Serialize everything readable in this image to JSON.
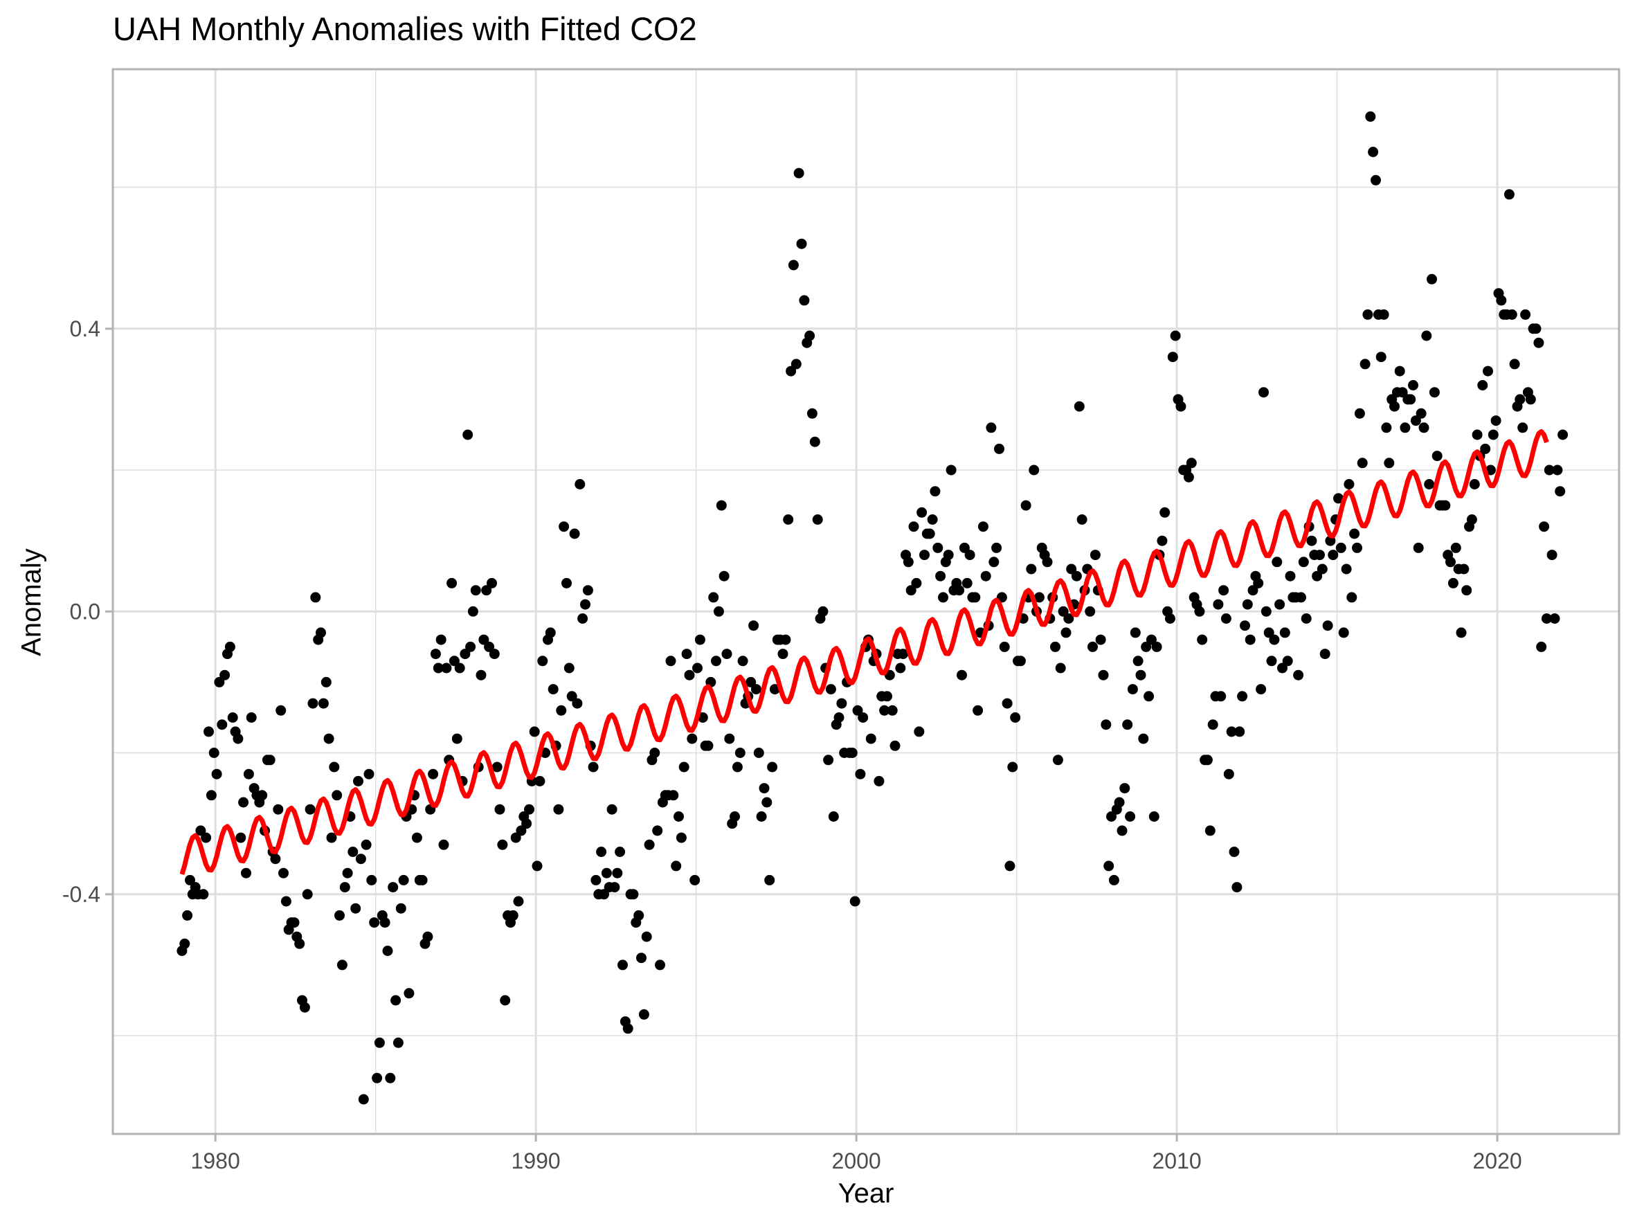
{
  "chart_data": {
    "type": "scatter",
    "title": "UAH Monthly Anomalies with Fitted CO2",
    "xlabel": "Year",
    "ylabel": "Anomaly",
    "xlim": [
      1976.8,
      2023.8
    ],
    "ylim": [
      -0.739,
      0.767
    ],
    "x_ticks": [
      1980,
      1990,
      2000,
      2010,
      2020
    ],
    "x_tick_labels": [
      "1980",
      "1990",
      "2000",
      "2010",
      "2020"
    ],
    "y_ticks": [
      -0.4,
      0.0,
      0.4
    ],
    "y_tick_labels": [
      "-0.4",
      "0.0",
      "0.4"
    ],
    "y_minor_ticks": [
      -0.6,
      -0.2,
      0.2,
      0.6
    ],
    "x_minor_ticks": [
      1985,
      1995,
      2005,
      2015
    ],
    "grid": true,
    "colors": {
      "points": "#000000",
      "fit_line": "#ff0000",
      "grid": "#dedede",
      "border": "#b3b3b3",
      "tick_text": "#4d4d4d"
    },
    "series": [
      {
        "name": "UAH monthly anomaly",
        "type": "scatter",
        "x_start": 1978.958,
        "x_step": 0.0833333,
        "values": [
          -0.48,
          -0.47,
          -0.43,
          -0.38,
          -0.4,
          -0.39,
          -0.4,
          -0.31,
          -0.4,
          -0.32,
          -0.17,
          -0.26,
          -0.2,
          -0.23,
          -0.1,
          -0.16,
          -0.09,
          -0.06,
          -0.05,
          -0.15,
          -0.17,
          -0.18,
          -0.32,
          -0.27,
          -0.37,
          -0.23,
          -0.15,
          -0.25,
          -0.26,
          -0.27,
          -0.26,
          -0.31,
          -0.21,
          -0.21,
          -0.34,
          -0.35,
          -0.28,
          -0.14,
          -0.37,
          -0.41,
          -0.45,
          -0.44,
          -0.44,
          -0.46,
          -0.47,
          -0.55,
          -0.56,
          -0.4,
          -0.28,
          -0.13,
          0.02,
          -0.04,
          -0.03,
          -0.13,
          -0.1,
          -0.18,
          -0.32,
          -0.22,
          -0.26,
          -0.43,
          -0.5,
          -0.39,
          -0.37,
          -0.29,
          -0.34,
          -0.42,
          -0.24,
          -0.35,
          -0.69,
          -0.33,
          -0.23,
          -0.38,
          -0.44,
          -0.66,
          -0.61,
          -0.43,
          -0.44,
          -0.48,
          -0.66,
          -0.39,
          -0.55,
          -0.61,
          -0.42,
          -0.38,
          -0.29,
          -0.54,
          -0.28,
          -0.26,
          -0.32,
          -0.38,
          -0.38,
          -0.47,
          -0.46,
          -0.28,
          -0.23,
          -0.06,
          -0.08,
          -0.04,
          -0.33,
          -0.08,
          -0.21,
          0.04,
          -0.07,
          -0.18,
          -0.08,
          -0.24,
          -0.06,
          0.25,
          -0.05,
          0.0,
          0.03,
          -0.22,
          -0.09,
          -0.04,
          0.03,
          -0.05,
          0.04,
          -0.06,
          -0.22,
          -0.28,
          -0.33,
          -0.55,
          -0.43,
          -0.44,
          -0.43,
          -0.32,
          -0.41,
          -0.31,
          -0.29,
          -0.3,
          -0.28,
          -0.24,
          -0.17,
          -0.36,
          -0.24,
          -0.07,
          -0.2,
          -0.04,
          -0.03,
          -0.11,
          -0.19,
          -0.28,
          -0.14,
          0.12,
          0.04,
          -0.08,
          -0.12,
          0.11,
          -0.13,
          0.18,
          -0.01,
          0.01,
          0.03,
          -0.19,
          -0.22,
          -0.38,
          -0.4,
          -0.34,
          -0.4,
          -0.37,
          -0.39,
          -0.28,
          -0.39,
          -0.37,
          -0.34,
          -0.5,
          -0.58,
          -0.59,
          -0.4,
          -0.4,
          -0.44,
          -0.43,
          -0.49,
          -0.57,
          -0.46,
          -0.33,
          -0.21,
          -0.2,
          -0.31,
          -0.5,
          -0.27,
          -0.26,
          -0.26,
          -0.07,
          -0.26,
          -0.36,
          -0.29,
          -0.32,
          -0.22,
          -0.06,
          -0.09,
          -0.18,
          -0.38,
          -0.08,
          -0.04,
          -0.15,
          -0.19,
          -0.19,
          -0.1,
          0.02,
          -0.07,
          0.0,
          0.15,
          0.05,
          -0.06,
          -0.18,
          -0.3,
          -0.29,
          -0.22,
          -0.2,
          -0.07,
          -0.13,
          -0.12,
          -0.1,
          -0.02,
          -0.11,
          -0.2,
          -0.29,
          -0.25,
          -0.27,
          -0.38,
          -0.22,
          -0.11,
          -0.04,
          -0.04,
          -0.06,
          -0.04,
          0.13,
          0.34,
          0.49,
          0.35,
          0.62,
          0.52,
          0.44,
          0.38,
          0.39,
          0.28,
          0.24,
          0.13,
          -0.01,
          0.0,
          -0.08,
          -0.21,
          -0.11,
          -0.29,
          -0.16,
          -0.15,
          -0.13,
          -0.2,
          -0.1,
          -0.2,
          -0.2,
          -0.41,
          -0.14,
          -0.23,
          -0.15,
          -0.05,
          -0.04,
          -0.18,
          -0.07,
          -0.06,
          -0.24,
          -0.12,
          -0.14,
          -0.12,
          -0.09,
          -0.14,
          -0.19,
          -0.06,
          -0.08,
          -0.06,
          0.08,
          0.07,
          0.03,
          0.12,
          0.04,
          -0.17,
          0.14,
          0.08,
          0.11,
          0.11,
          0.13,
          0.17,
          0.09,
          0.05,
          0.02,
          0.07,
          0.08,
          0.2,
          0.03,
          0.04,
          0.03,
          -0.09,
          0.09,
          0.04,
          0.08,
          0.02,
          0.02,
          -0.14,
          -0.03,
          0.12,
          0.05,
          -0.02,
          0.26,
          0.07,
          0.09,
          0.23,
          0.02,
          -0.05,
          -0.13,
          -0.36,
          -0.22,
          -0.15,
          -0.07,
          -0.07,
          -0.01,
          0.15,
          0.02,
          0.06,
          0.2,
          0.0,
          0.02,
          0.09,
          0.08,
          0.07,
          -0.01,
          0.02,
          -0.05,
          -0.21,
          -0.08,
          0.0,
          -0.03,
          -0.01,
          0.06,
          0.01,
          0.05,
          0.29,
          0.13,
          0.03,
          0.06,
          0.0,
          -0.05,
          0.08,
          0.03,
          -0.04,
          -0.09,
          -0.16,
          -0.36,
          -0.29,
          -0.38,
          -0.28,
          -0.27,
          -0.31,
          -0.25,
          -0.16,
          -0.29,
          -0.11,
          -0.03,
          -0.07,
          -0.09,
          -0.18,
          -0.05,
          -0.12,
          -0.04,
          -0.29,
          -0.05,
          0.08,
          0.1,
          0.14,
          0.0,
          -0.01,
          0.36,
          0.39,
          0.3,
          0.29,
          0.2,
          0.2,
          0.19,
          0.21,
          0.02,
          0.01,
          0.0,
          -0.04,
          -0.21,
          -0.21,
          -0.31,
          -0.16,
          -0.12,
          0.01,
          -0.12,
          0.03,
          -0.01,
          -0.23,
          -0.17,
          -0.34,
          -0.39,
          -0.17,
          -0.12,
          -0.02,
          0.01,
          -0.04,
          0.03,
          0.05,
          0.04,
          -0.11,
          0.31,
          0.0,
          -0.03,
          -0.07,
          -0.04,
          0.07,
          0.01,
          -0.08,
          -0.03,
          -0.07,
          0.05,
          0.02,
          0.02,
          -0.09,
          0.02,
          0.07,
          -0.01,
          0.12,
          0.1,
          0.08,
          0.05,
          0.08,
          0.06,
          -0.06,
          -0.02,
          0.1,
          0.08,
          0.13,
          0.16,
          0.09,
          -0.03,
          0.06,
          0.18,
          0.02,
          0.11,
          0.09,
          0.28,
          0.21,
          0.35,
          0.42,
          0.7,
          0.65,
          0.61,
          0.42,
          0.36,
          0.42,
          0.26,
          0.21,
          0.3,
          0.29,
          0.31,
          0.34,
          0.31,
          0.26,
          0.3,
          0.3,
          0.32,
          0.27,
          0.09,
          0.28,
          0.26,
          0.39,
          0.18,
          0.47,
          0.31,
          0.22,
          0.15,
          0.15,
          0.15,
          0.08,
          0.07,
          0.04,
          0.09,
          0.06,
          -0.03,
          0.06,
          0.03,
          0.12,
          0.13,
          0.18,
          0.25,
          0.22,
          0.32,
          0.23,
          0.34,
          0.2,
          0.25,
          0.27,
          0.45,
          0.44,
          0.42,
          0.42,
          0.59,
          0.42,
          0.35,
          0.29,
          0.3,
          0.26,
          0.42,
          0.31,
          0.3,
          0.4,
          0.4,
          0.38,
          -0.05,
          0.12,
          -0.01,
          0.2,
          0.08,
          -0.01,
          0.2,
          0.17,
          0.25
        ]
      },
      {
        "name": "Fitted CO2",
        "type": "line",
        "x_start": 1978.958,
        "x_end": 2021.6,
        "x_step": 0.0833333,
        "trend": {
          "at_start": -0.35,
          "at_end": 0.23,
          "curvature": 0.06
        },
        "seasonal_amplitude": 0.028,
        "seasonal_peak_phase": 0.35
      }
    ]
  }
}
